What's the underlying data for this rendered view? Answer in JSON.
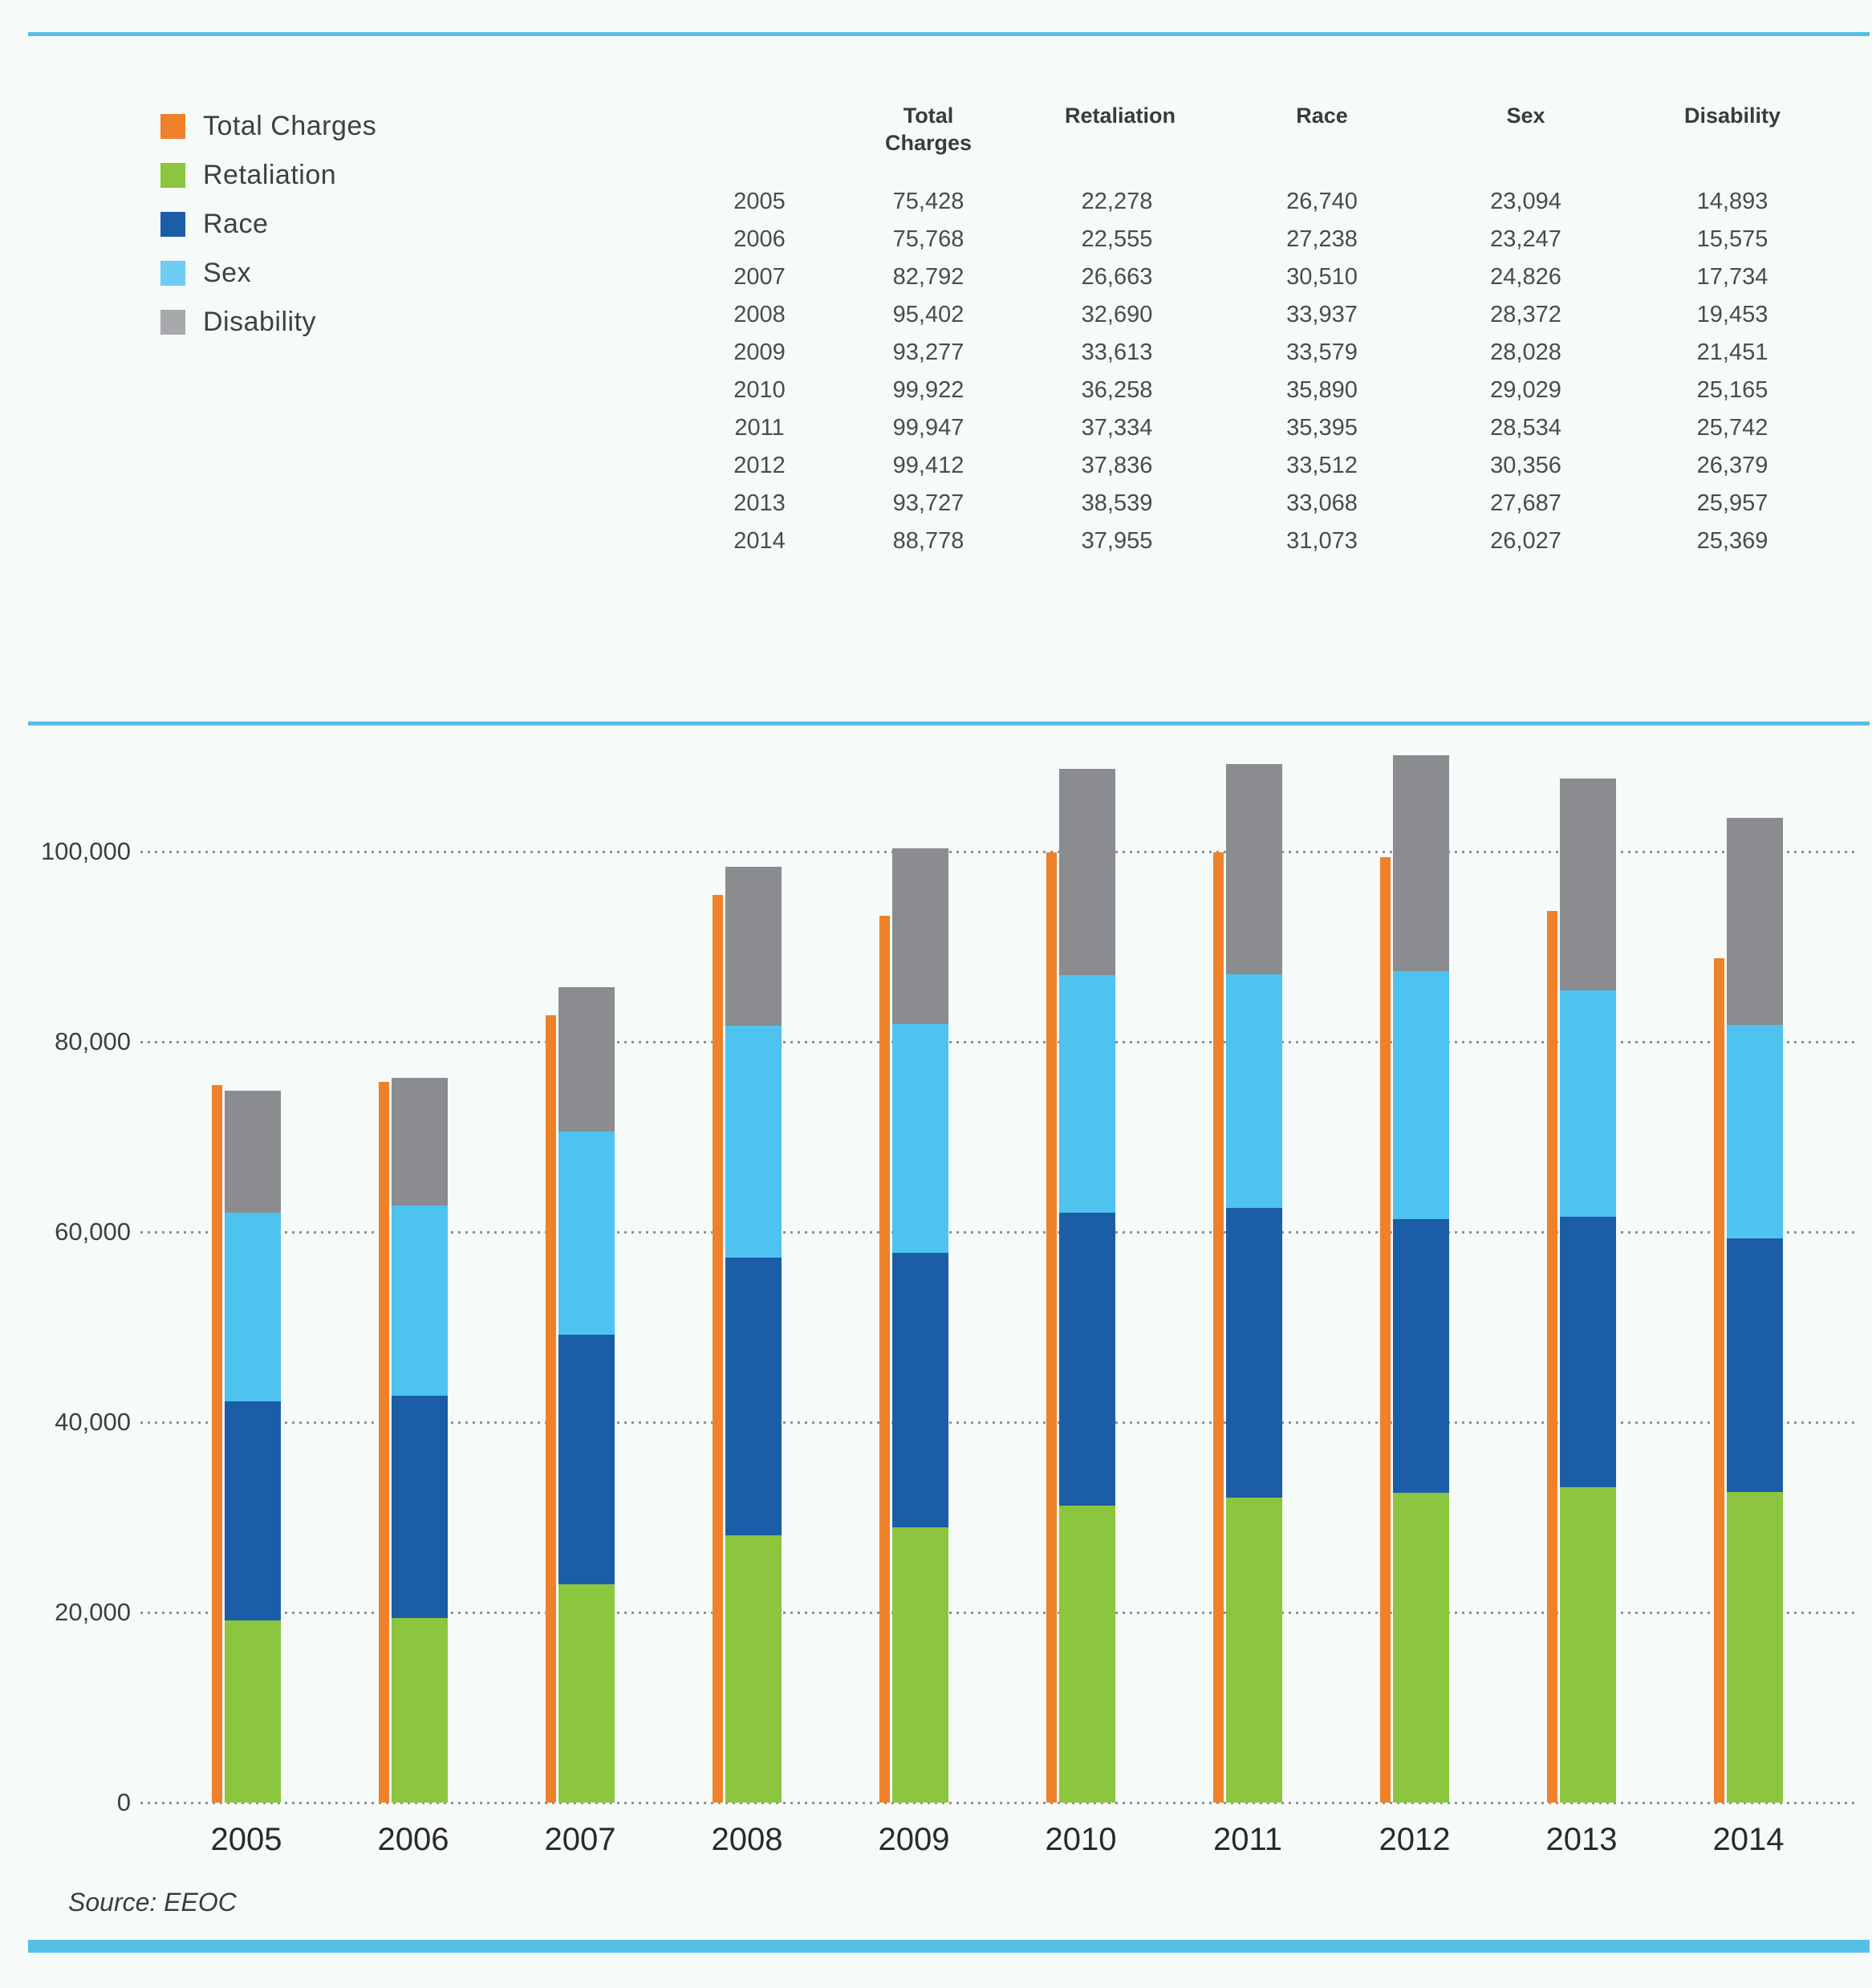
{
  "accent_rule_color": "#55bee6",
  "legend": {
    "items": [
      {
        "label": "Total Charges",
        "color": "#f0812b"
      },
      {
        "label": "Retaliation",
        "color": "#8cc63f"
      },
      {
        "label": "Race",
        "color": "#1c5da8"
      },
      {
        "label": "Sex",
        "color": "#6fccf3"
      },
      {
        "label": "Disability",
        "color": "#a7a9ac"
      }
    ]
  },
  "table": {
    "col_headers": [
      "",
      "Total Charges",
      "Retaliation",
      "Race",
      "Sex",
      "Disability"
    ],
    "rows": [
      [
        "2005",
        "75,428",
        "22,278",
        "26,740",
        "23,094",
        "14,893"
      ],
      [
        "2006",
        "75,768",
        "22,555",
        "27,238",
        "23,247",
        "15,575"
      ],
      [
        "2007",
        "82,792",
        "26,663",
        "30,510",
        "24,826",
        "17,734"
      ],
      [
        "2008",
        "95,402",
        "32,690",
        "33,937",
        "28,372",
        "19,453"
      ],
      [
        "2009",
        "93,277",
        "33,613",
        "33,579",
        "28,028",
        "21,451"
      ],
      [
        "2010",
        "99,922",
        "36,258",
        "35,890",
        "29,029",
        "25,165"
      ],
      [
        "2011",
        "99,947",
        "37,334",
        "35,395",
        "28,534",
        "25,742"
      ],
      [
        "2012",
        "99,412",
        "37,836",
        "33,512",
        "30,356",
        "26,379"
      ],
      [
        "2013",
        "93,727",
        "38,539",
        "33,068",
        "27,687",
        "25,957"
      ],
      [
        "2014",
        "88,778",
        "37,955",
        "31,073",
        "26,027",
        "25,369"
      ]
    ]
  },
  "chart_data": {
    "type": "bar",
    "title": "",
    "categories": [
      "2005",
      "2006",
      "2007",
      "2008",
      "2009",
      "2010",
      "2011",
      "2012",
      "2013",
      "2014"
    ],
    "series": [
      {
        "name": "Total Charges",
        "style": "separate-bar",
        "color": "#f0812b",
        "values": [
          75428,
          75768,
          82792,
          95402,
          93277,
          99922,
          99947,
          99412,
          93727,
          88778
        ]
      },
      {
        "name": "Retaliation",
        "style": "stacked",
        "color": "#8cc63f",
        "values": [
          22278,
          22555,
          26663,
          32690,
          33613,
          36258,
          37334,
          37836,
          38539,
          37955
        ]
      },
      {
        "name": "Race",
        "style": "stacked",
        "color": "#1c5da8",
        "values": [
          26740,
          27238,
          30510,
          33937,
          33579,
          35890,
          35395,
          33512,
          33068,
          31073
        ]
      },
      {
        "name": "Sex",
        "style": "stacked",
        "color": "#4ec3f0",
        "values": [
          23094,
          23247,
          24826,
          28372,
          28028,
          29029,
          28534,
          30356,
          27687,
          26027
        ]
      },
      {
        "name": "Disability",
        "style": "stacked",
        "color": "#8a8c8f",
        "values": [
          14893,
          15575,
          17734,
          19453,
          21451,
          25165,
          25742,
          26379,
          25957,
          25369
        ]
      }
    ],
    "xlabel": "",
    "ylabel": "",
    "ylim": [
      0,
      100000
    ],
    "yticks": {
      "values": [
        0,
        20000,
        40000,
        60000,
        80000,
        100000
      ],
      "labels": [
        "0",
        "20,000",
        "40,000",
        "60,000",
        "80,000",
        "100,000"
      ]
    },
    "grid": "horizontal-dotted",
    "legend_position": "top-left",
    "annotation": "Source: EEOC"
  },
  "source": {
    "label": "Source: EEOC"
  }
}
